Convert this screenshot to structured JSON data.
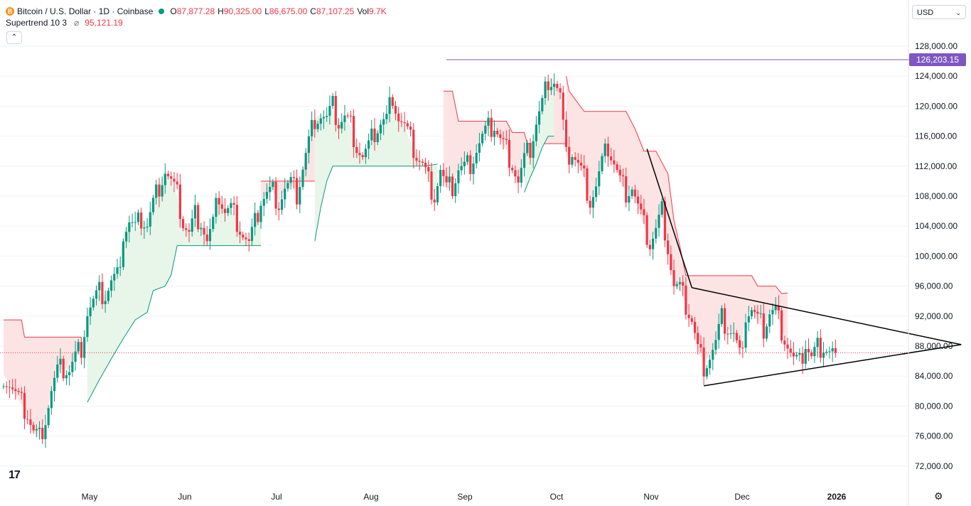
{
  "header": {
    "symbol_icon_letter": "B",
    "title": "Bitcoin / U.S. Dollar · 1D · Coinbase",
    "ohlc": [
      {
        "key": "O",
        "value": "87,877.28"
      },
      {
        "key": "H",
        "value": "90,325.00"
      },
      {
        "key": "L",
        "value": "86,675.00"
      },
      {
        "key": "C",
        "value": "87,107.25"
      },
      {
        "key": "Vol",
        "value": "9.7K"
      }
    ],
    "indicator_name": "Supertrend 10 3",
    "indicator_symbol": "⌀",
    "indicator_value": "95,121.19",
    "collapse_glyph": "⌃"
  },
  "toolbar": {
    "currency": "USD",
    "chevron": "⌄",
    "logo": "17",
    "settings_glyph": "⚙"
  },
  "colors": {
    "up": "#089981",
    "down": "#f23645",
    "supertrend_up_fill": "#e8f5e9",
    "supertrend_down_fill": "#fde4e4",
    "ath_line": "#7e57c2",
    "trendline": "#000000"
  },
  "chart_data": {
    "type": "candlestick",
    "ylim": [
      70000,
      130000
    ],
    "y_ticks": [
      "128,000.00",
      "124,000.00",
      "120,000.00",
      "116,000.00",
      "112,000.00",
      "108,000.00",
      "104,000.00",
      "100,000.00",
      "96,000.00",
      "92,000.00",
      "88,000.00",
      "84,000.00",
      "80,000.00",
      "76,000.00",
      "72,000.00"
    ],
    "x_ticks": [
      "May",
      "Jun",
      "Jul",
      "Aug",
      "Sep",
      "Oct",
      "Nov",
      "Dec",
      "2026"
    ],
    "ath_label": "126,203.15",
    "ath_value": 126203.15,
    "last_price_value": 87107.25,
    "supertrend_current": 95121.19,
    "close_points": [
      [
        0,
        84200
      ],
      [
        2,
        83000
      ],
      [
        4,
        81500
      ],
      [
        6,
        80200
      ],
      [
        8,
        79000
      ],
      [
        10,
        76500
      ],
      [
        12,
        75800
      ],
      [
        14,
        78500
      ],
      [
        16,
        82000
      ],
      [
        18,
        84500
      ],
      [
        20,
        85000
      ],
      [
        22,
        84800
      ],
      [
        24,
        86500
      ],
      [
        26,
        88000
      ],
      [
        28,
        92500
      ],
      [
        30,
        93800
      ],
      [
        32,
        95000
      ],
      [
        34,
        94800
      ],
      [
        36,
        96500
      ],
      [
        38,
        97200
      ],
      [
        40,
        103000
      ],
      [
        42,
        104500
      ],
      [
        44,
        103500
      ],
      [
        46,
        105000
      ],
      [
        48,
        104200
      ],
      [
        50,
        107000
      ],
      [
        52,
        109500
      ],
      [
        54,
        111500
      ],
      [
        56,
        109800
      ],
      [
        58,
        108000
      ],
      [
        60,
        104500
      ],
      [
        62,
        103000
      ],
      [
        64,
        105500
      ],
      [
        66,
        104800
      ],
      [
        68,
        102000
      ],
      [
        70,
        104200
      ],
      [
        72,
        108200
      ],
      [
        74,
        106000
      ],
      [
        76,
        106300
      ],
      [
        78,
        104800
      ],
      [
        80,
        103000
      ],
      [
        82,
        101500
      ],
      [
        84,
        104200
      ],
      [
        86,
        107500
      ],
      [
        88,
        108300
      ],
      [
        90,
        108600
      ],
      [
        92,
        107200
      ],
      [
        94,
        109000
      ],
      [
        96,
        109500
      ],
      [
        98,
        108200
      ],
      [
        100,
        111800
      ],
      [
        102,
        115200
      ],
      [
        104,
        118500
      ],
      [
        106,
        118900
      ],
      [
        108,
        118200
      ],
      [
        110,
        119800
      ],
      [
        112,
        117800
      ],
      [
        114,
        118500
      ],
      [
        116,
        117400
      ],
      [
        118,
        114800
      ],
      [
        120,
        113200
      ],
      [
        122,
        114400
      ],
      [
        124,
        116500
      ],
      [
        126,
        117800
      ],
      [
        128,
        118200
      ],
      [
        130,
        121600
      ],
      [
        132,
        118500
      ],
      [
        134,
        117200
      ],
      [
        136,
        115300
      ],
      [
        138,
        113500
      ],
      [
        140,
        112200
      ],
      [
        142,
        110000
      ],
      [
        144,
        108200
      ],
      [
        146,
        111500
      ],
      [
        148,
        108800
      ],
      [
        150,
        109300
      ],
      [
        152,
        111700
      ],
      [
        154,
        111800
      ],
      [
        156,
        112500
      ],
      [
        158,
        114300
      ],
      [
        160,
        115800
      ],
      [
        162,
        116900
      ],
      [
        164,
        117500
      ],
      [
        166,
        115500
      ],
      [
        168,
        114200
      ],
      [
        170,
        112500
      ],
      [
        172,
        109800
      ],
      [
        174,
        112700
      ],
      [
        176,
        114400
      ],
      [
        178,
        117800
      ],
      [
        180,
        120300
      ],
      [
        182,
        123700
      ],
      [
        184,
        123500
      ],
      [
        186,
        121300
      ],
      [
        188,
        113000
      ],
      [
        190,
        114000
      ],
      [
        192,
        112200
      ],
      [
        194,
        110400
      ],
      [
        196,
        107500
      ],
      [
        198,
        109300
      ],
      [
        200,
        112300
      ],
      [
        202,
        114600
      ],
      [
        204,
        112500
      ],
      [
        206,
        110000
      ],
      [
        208,
        108700
      ],
      [
        210,
        109400
      ],
      [
        212,
        106500
      ],
      [
        214,
        103900
      ],
      [
        216,
        101700
      ],
      [
        218,
        103500
      ],
      [
        220,
        106000
      ],
      [
        222,
        101300
      ],
      [
        224,
        96000
      ],
      [
        226,
        95500
      ],
      [
        228,
        93500
      ],
      [
        230,
        91500
      ],
      [
        232,
        87500
      ],
      [
        234,
        85500
      ],
      [
        236,
        86700
      ],
      [
        238,
        88300
      ],
      [
        240,
        91500
      ],
      [
        242,
        90400
      ],
      [
        244,
        89500
      ],
      [
        246,
        86500
      ],
      [
        248,
        92200
      ],
      [
        250,
        92800
      ],
      [
        252,
        91300
      ],
      [
        254,
        90300
      ],
      [
        256,
        92500
      ],
      [
        258,
        92600
      ],
      [
        260,
        90300
      ],
      [
        262,
        88200
      ],
      [
        264,
        86100
      ],
      [
        266,
        85500
      ],
      [
        268,
        88400
      ],
      [
        270,
        86400
      ],
      [
        272,
        87800
      ],
      [
        274,
        88200
      ],
      [
        276,
        87300
      ],
      [
        278,
        87107
      ]
    ],
    "supertrend_segments": [
      {
        "dir": "down",
        "pts": [
          [
            0,
            91500
          ],
          [
            6,
            91500
          ],
          [
            7,
            89200
          ],
          [
            26,
            89200
          ]
        ]
      },
      {
        "dir": "up",
        "pts": [
          [
            28,
            80500
          ],
          [
            32,
            83500
          ],
          [
            36,
            86300
          ],
          [
            40,
            89000
          ],
          [
            44,
            91500
          ],
          [
            48,
            92500
          ],
          [
            50,
            95400
          ],
          [
            54,
            96000
          ],
          [
            56,
            97500
          ],
          [
            58,
            101400
          ],
          [
            60,
            101400
          ],
          [
            86,
            101400
          ]
        ]
      },
      {
        "dir": "down",
        "pts": [
          [
            86,
            110000
          ],
          [
            104,
            110000
          ]
        ]
      },
      {
        "dir": "up",
        "pts": [
          [
            104,
            102000
          ],
          [
            106,
            106500
          ],
          [
            108,
            110000
          ],
          [
            110,
            112000
          ],
          [
            140,
            112000
          ],
          [
            144,
            112200
          ],
          [
            145,
            112300
          ]
        ]
      },
      {
        "dir": "down",
        "pts": [
          [
            147,
            122000
          ],
          [
            150,
            122000
          ],
          [
            152,
            118000
          ],
          [
            168,
            118000
          ],
          [
            170,
            116500
          ],
          [
            174,
            116500
          ],
          [
            175,
            115000
          ],
          [
            189,
            115000
          ]
        ]
      },
      {
        "dir": "up",
        "pts": [
          [
            174,
            108500
          ],
          [
            176,
            110500
          ],
          [
            178,
            112300
          ],
          [
            180,
            114500
          ],
          [
            182,
            116000
          ],
          [
            184,
            116000
          ]
        ]
      },
      {
        "dir": "down",
        "pts": [
          [
            188,
            124000
          ],
          [
            189,
            122000
          ],
          [
            194,
            119300
          ],
          [
            208,
            119300
          ],
          [
            211,
            117000
          ],
          [
            214,
            114000
          ],
          [
            218,
            114000
          ],
          [
            222,
            111000
          ],
          [
            224,
            104800
          ],
          [
            226,
            101300
          ],
          [
            228,
            97400
          ],
          [
            250,
            97400
          ],
          [
            252,
            96000
          ],
          [
            258,
            96000
          ],
          [
            260,
            95000
          ],
          [
            262,
            95100
          ]
        ]
      }
    ],
    "trendlines": [
      {
        "from": [
          215,
          114300
        ],
        "to": [
          230,
          95800
        ]
      },
      {
        "from": [
          230,
          95800
        ],
        "to": [
          320,
          88200
        ]
      },
      {
        "from": [
          234,
          82700
        ],
        "to": [
          320,
          88200
        ]
      }
    ]
  }
}
